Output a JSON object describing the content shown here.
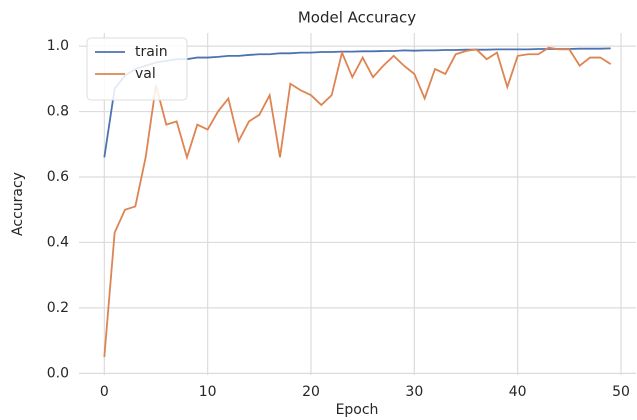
{
  "chart_data": {
    "type": "line",
    "title": "Model Accuracy",
    "x_label": "Epoch",
    "y_label": "Accuracy",
    "x": [
      0,
      1,
      2,
      3,
      4,
      5,
      6,
      7,
      8,
      9,
      10,
      11,
      12,
      13,
      14,
      15,
      16,
      17,
      18,
      19,
      20,
      21,
      22,
      23,
      24,
      25,
      26,
      27,
      28,
      29,
      30,
      31,
      32,
      33,
      34,
      35,
      36,
      37,
      38,
      39,
      40,
      41,
      42,
      43,
      44,
      45,
      46,
      47,
      48,
      49
    ],
    "series": [
      {
        "name": "train",
        "color": "#4c72b0",
        "values": [
          0.66,
          0.87,
          0.91,
          0.93,
          0.94,
          0.95,
          0.955,
          0.96,
          0.96,
          0.965,
          0.965,
          0.967,
          0.97,
          0.97,
          0.973,
          0.975,
          0.975,
          0.978,
          0.978,
          0.98,
          0.98,
          0.982,
          0.982,
          0.983,
          0.983,
          0.984,
          0.984,
          0.985,
          0.985,
          0.987,
          0.986,
          0.987,
          0.987,
          0.988,
          0.988,
          0.989,
          0.989,
          0.989,
          0.99,
          0.99,
          0.99,
          0.99,
          0.991,
          0.991,
          0.991,
          0.991,
          0.992,
          0.992,
          0.992,
          0.993
        ]
      },
      {
        "name": "val",
        "color": "#dd8452",
        "values": [
          0.05,
          0.43,
          0.5,
          0.51,
          0.66,
          0.88,
          0.76,
          0.77,
          0.66,
          0.76,
          0.745,
          0.8,
          0.84,
          0.71,
          0.77,
          0.79,
          0.85,
          0.66,
          0.885,
          0.865,
          0.85,
          0.82,
          0.85,
          0.98,
          0.905,
          0.965,
          0.905,
          0.94,
          0.97,
          0.94,
          0.915,
          0.84,
          0.93,
          0.915,
          0.975,
          0.985,
          0.99,
          0.96,
          0.98,
          0.875,
          0.97,
          0.975,
          0.975,
          0.995,
          0.99,
          0.99,
          0.94,
          0.965,
          0.965,
          0.945
        ]
      }
    ],
    "xlim": [
      -2.45,
      51.45
    ],
    "ylim": [
      -0.005,
      1.04
    ],
    "xticks": [
      0,
      10,
      20,
      30,
      40,
      50
    ],
    "yticks": [
      {
        "value": 0,
        "label": "0.0"
      },
      0.2,
      0.4,
      0.6,
      0.8,
      {
        "value": 1,
        "label": "1.0"
      }
    ],
    "grid": true,
    "legend": "upper left"
  }
}
